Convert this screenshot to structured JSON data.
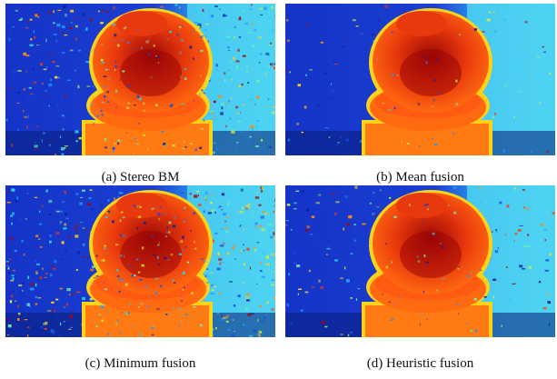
{
  "figure": {
    "panels": [
      {
        "caption": "(a) Stereo BM",
        "noise_level": 0.75
      },
      {
        "caption": "(b) Mean fusion",
        "noise_level": 0.15
      },
      {
        "caption": "(c) Minimum fusion",
        "noise_level": 1.0
      },
      {
        "caption": "(d) Heuristic fusion",
        "noise_level": 0.3
      }
    ],
    "colormap": "jet",
    "colors": {
      "background_far": "#1a3fd0",
      "background_near_wall": "#4ed4f2",
      "object_red": "#e8380d",
      "object_core": "#9a0606",
      "object_orange": "#ff6a10",
      "base_orange": "#ff7a12",
      "edge_yellow": "#ffd21a",
      "floor_dark": "#0a1f7a"
    }
  }
}
